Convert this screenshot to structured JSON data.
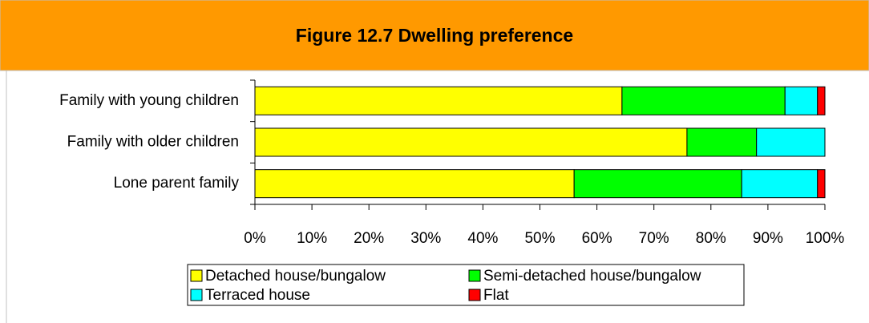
{
  "chart_data": {
    "type": "stacked-bar-horizontal",
    "title": "Figure 12.7 Dwelling preference",
    "categories": [
      "Family with young children",
      "Family with older children",
      "Lone parent family"
    ],
    "series": [
      {
        "name": "Detached house/bungalow",
        "color": "#ffff00",
        "values": [
          64.4,
          75.8,
          56.0
        ]
      },
      {
        "name": "Semi-detached house/bungalow",
        "color": "#00ff00",
        "values": [
          28.6,
          12.2,
          29.4
        ]
      },
      {
        "name": "Terraced house",
        "color": "#00ffff",
        "values": [
          5.7,
          12.0,
          13.3
        ]
      },
      {
        "name": "Flat",
        "color": "#ff0000",
        "values": [
          1.3,
          0,
          1.3
        ]
      }
    ],
    "xlim": [
      0,
      100
    ],
    "xticks": [
      {
        "value": 0,
        "label": "0%"
      },
      {
        "value": 10,
        "label": "10%"
      },
      {
        "value": 20,
        "label": "20%"
      },
      {
        "value": 30,
        "label": "30%"
      },
      {
        "value": 40,
        "label": "40%"
      },
      {
        "value": 50,
        "label": "50%"
      },
      {
        "value": 60,
        "label": "60%"
      },
      {
        "value": 70,
        "label": "70%"
      },
      {
        "value": 80,
        "label": "80%"
      },
      {
        "value": 90,
        "label": "90%"
      },
      {
        "value": 100,
        "label": "100%"
      }
    ],
    "legend": "bottom"
  }
}
